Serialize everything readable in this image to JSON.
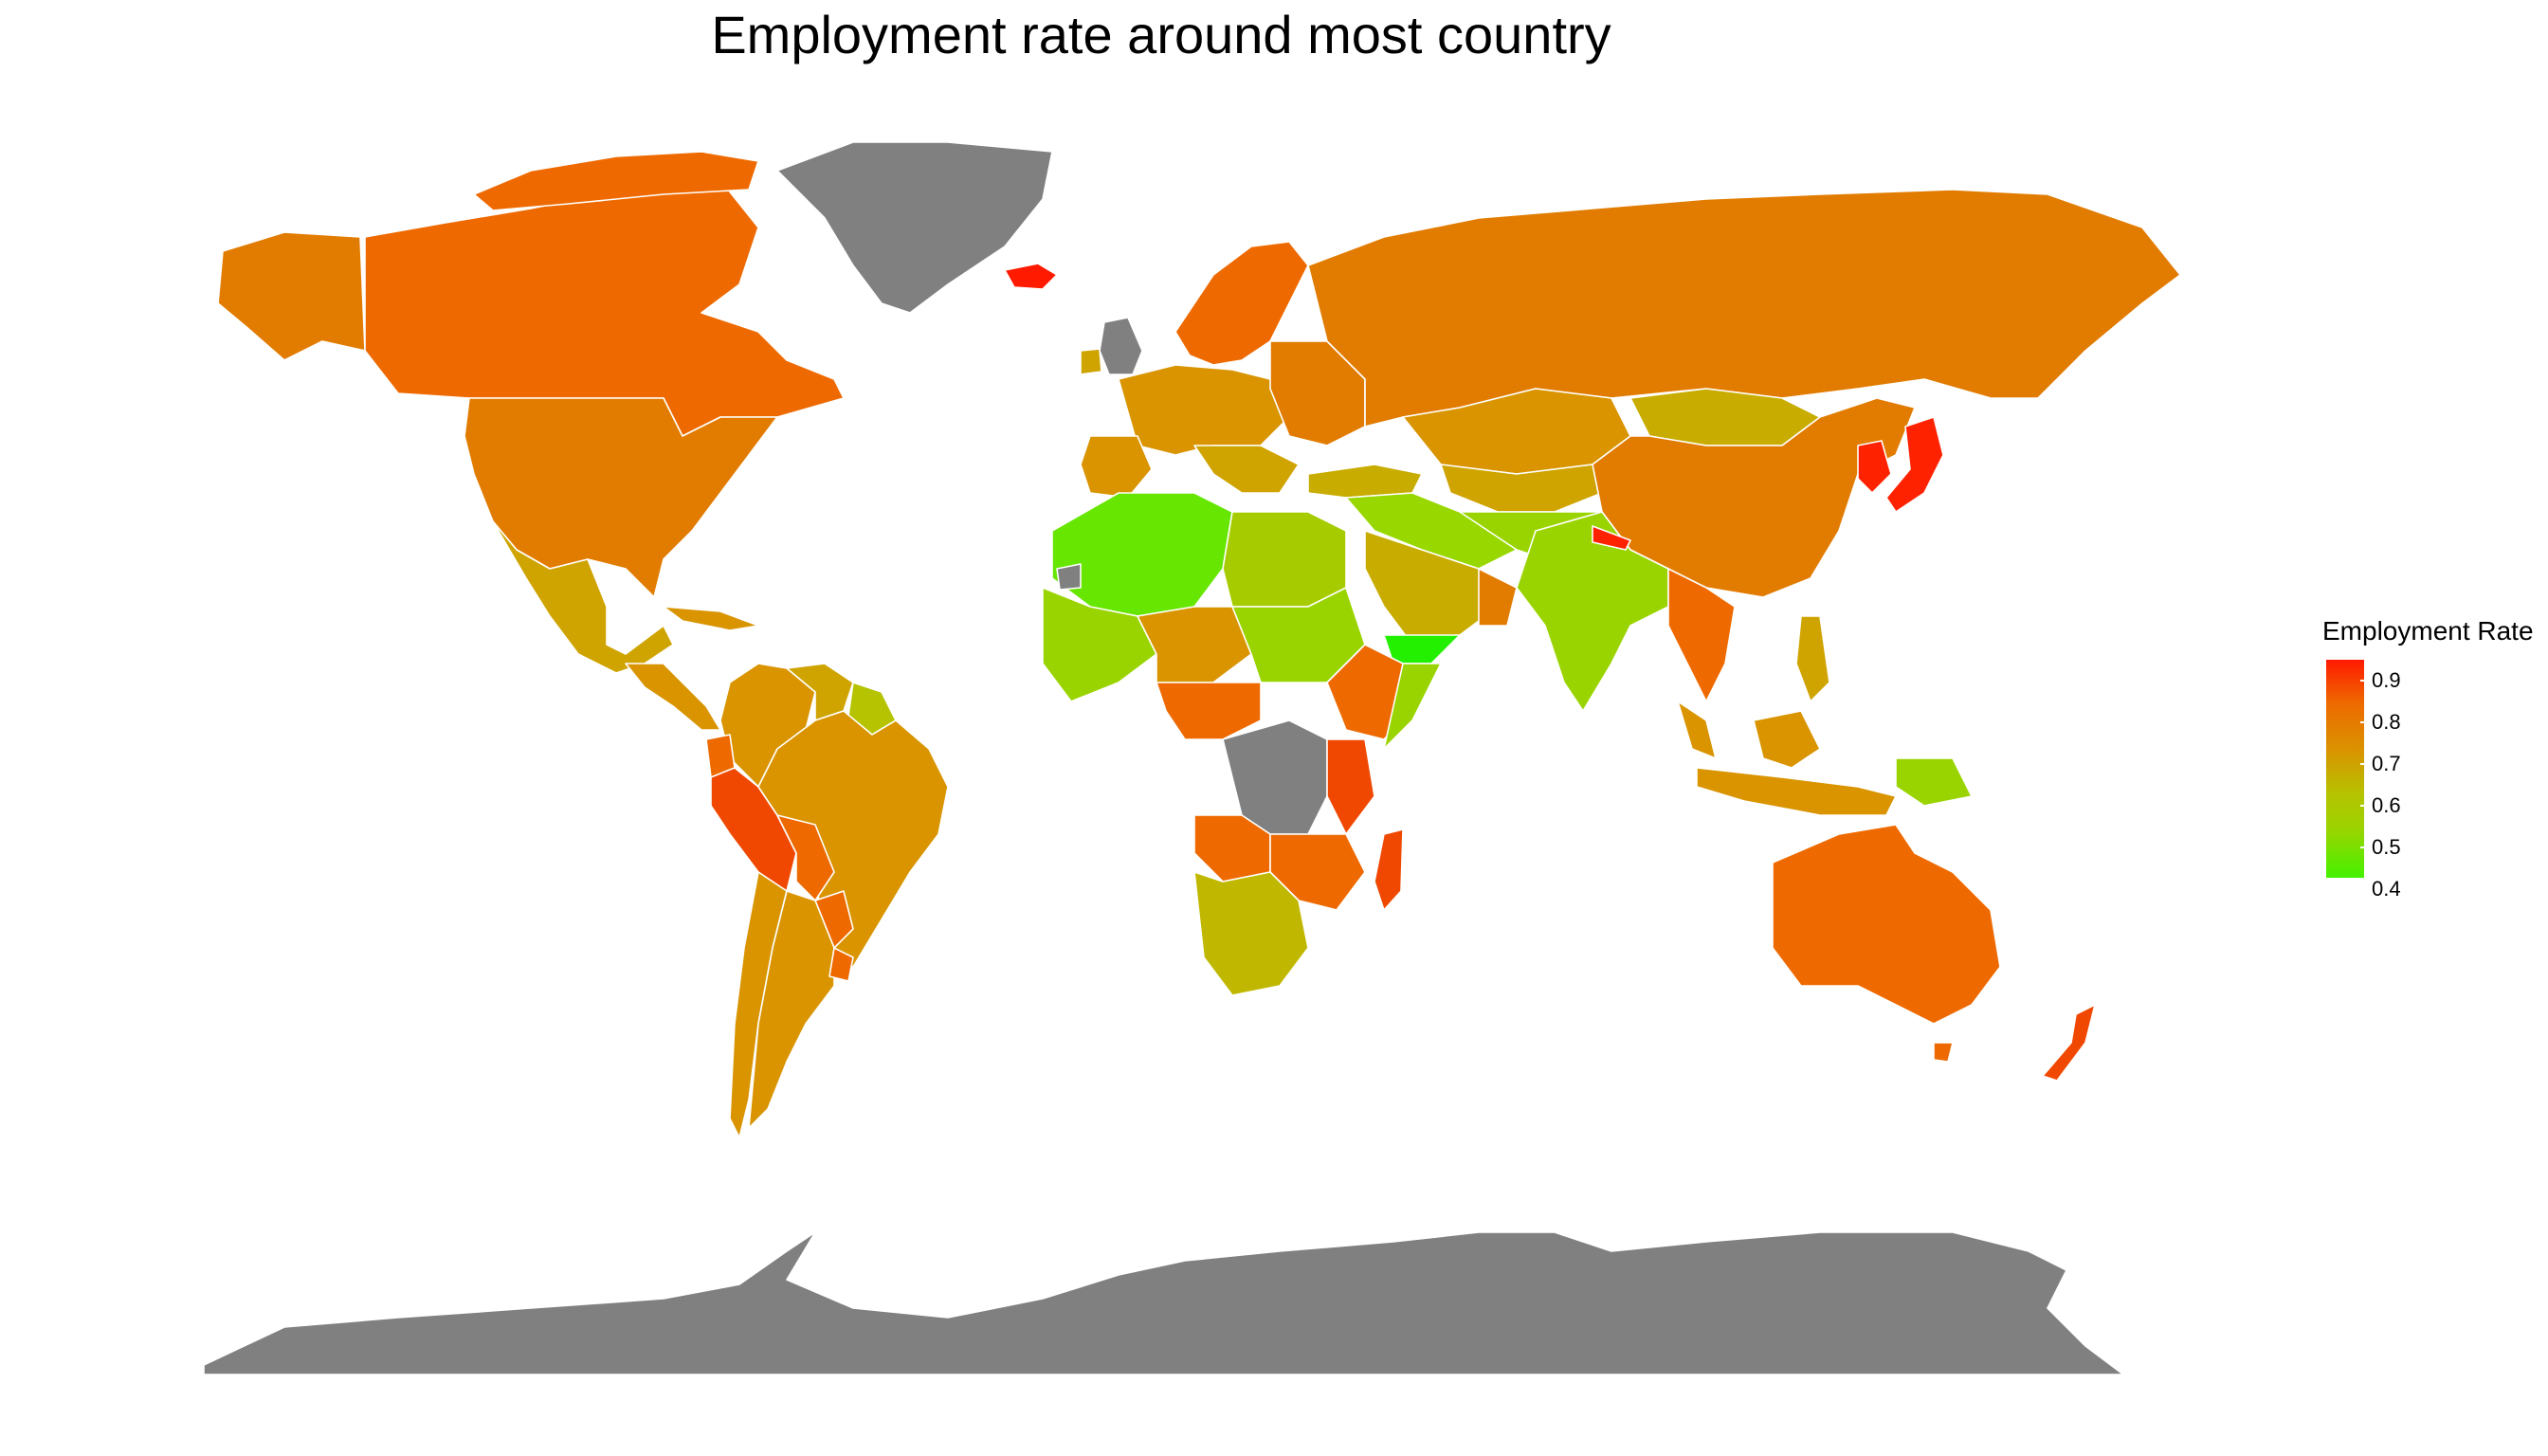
{
  "title": "Employment rate around most country",
  "legend": {
    "title": "Employment Rate",
    "ticks": [
      "0.9",
      "0.8",
      "0.7",
      "0.6",
      "0.5",
      "0.4"
    ],
    "low_color": "#44f200",
    "mid_color": "#d99400",
    "high_color": "#ff1a00",
    "missing_color": "#808080"
  },
  "chart_data": {
    "type": "choropleth",
    "title": "Employment rate around most country",
    "legend_title": "Employment Rate",
    "legend_placement": "right",
    "value_range": [
      0.4,
      0.9
    ],
    "color_scale": [
      "#44f200",
      "#d99400",
      "#ff1a00"
    ],
    "missing_color": "#808080"
  }
}
